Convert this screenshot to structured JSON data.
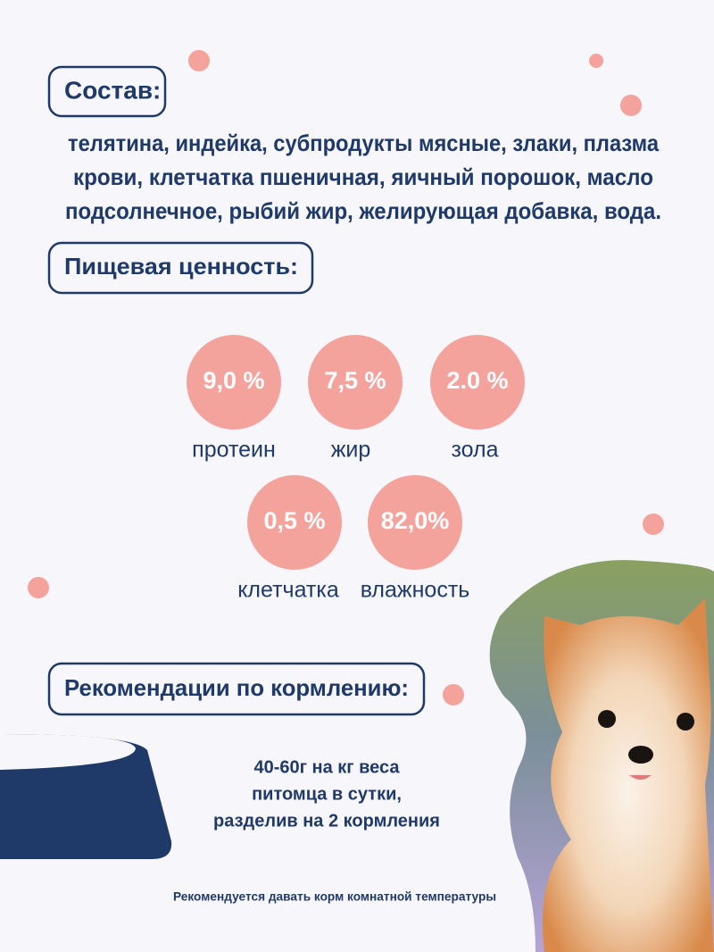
{
  "composition": {
    "title": "Состав:",
    "lines": [
      "телятина, индейка, субпродукты мясные, злаки, плазма",
      "крови, клетчатка пшеничная, яичный порошок, масло",
      "подсолнечное, рыбий жир, желирующая добавка, вода."
    ]
  },
  "nutrition": {
    "title": "Пищевая ценность:",
    "items": [
      {
        "value": "9,0 %",
        "label": "протеин"
      },
      {
        "value": "7,5 %",
        "label": "жир"
      },
      {
        "value": "2.0 %",
        "label": "зола"
      },
      {
        "value": "0,5 %",
        "label": "клетчатка"
      },
      {
        "value": "82,0%",
        "label": "влажность"
      }
    ]
  },
  "feeding": {
    "title": "Рекомендации по кормлению:",
    "lines": [
      "40-60г на кг веса",
      "питомца в сутки,",
      "разделив на 2 кормления"
    ],
    "note": "Рекомендуется давать корм комнатной температуры"
  }
}
